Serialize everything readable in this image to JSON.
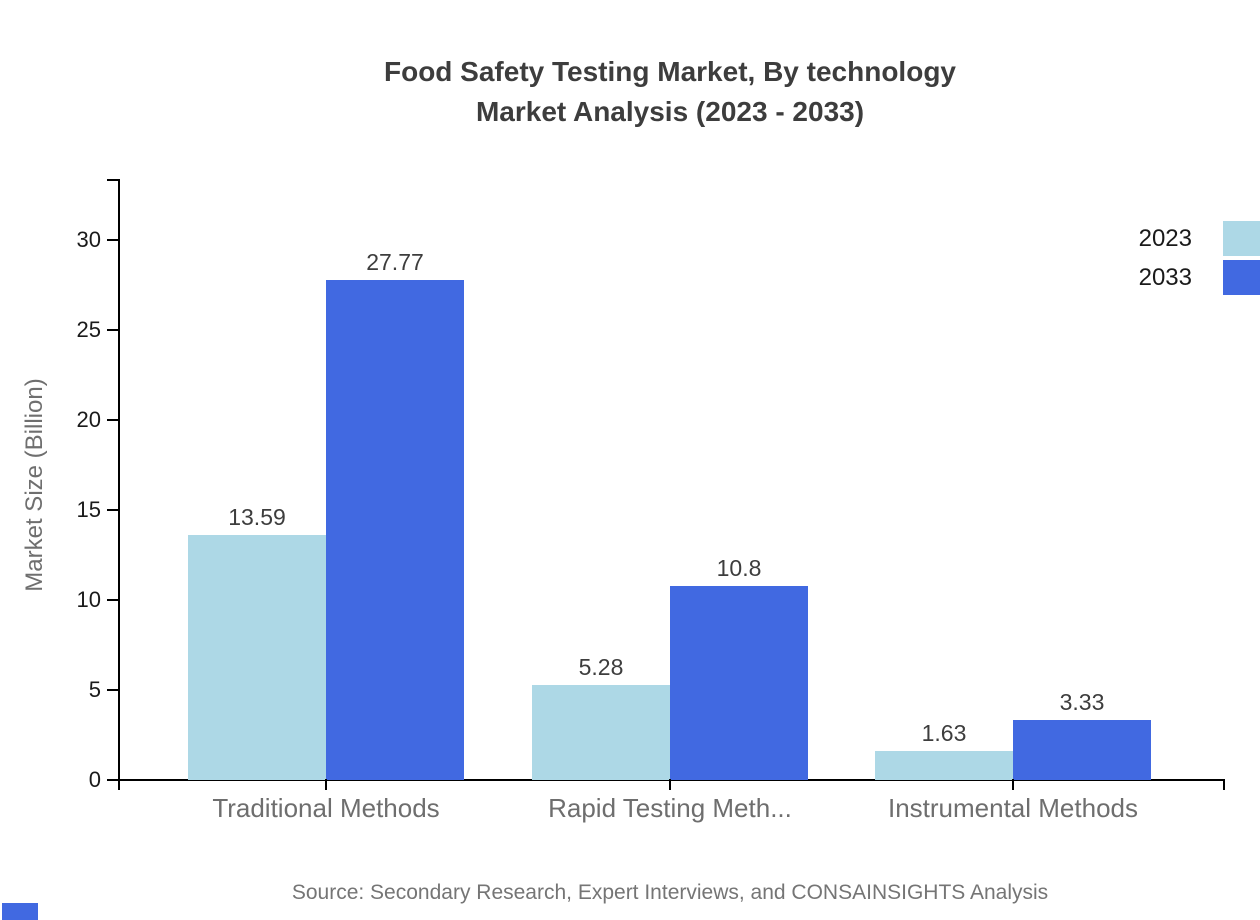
{
  "title": {
    "line1": "Food Safety Testing Market, By technology",
    "line2": "Market Analysis (2023 - 2033)"
  },
  "y_axis_label": "Market Size (Billion)",
  "source": "Source: Secondary Research, Expert Interviews, and CONSAINSIGHTS Analysis",
  "legend": {
    "position": "top-right",
    "entries": [
      {
        "label": "2023",
        "color": "#ADD8E6"
      },
      {
        "label": "2033",
        "color": "#4169E1"
      }
    ]
  },
  "colors": {
    "axis": "#000000",
    "title_text": "#3d3d3d",
    "value_label_text": "#3d3d3d",
    "tick_label_text": "#1a1a1a",
    "category_label_text": "#6e6e6e",
    "source_text": "#757575",
    "series_2023": "#ADD8E6",
    "series_2033": "#4169E1",
    "brand_mark": "#4169E1",
    "background": "#ffffff"
  },
  "chart_data": {
    "type": "bar",
    "title": "Food Safety Testing Market, By technology Market Analysis (2023 - 2033)",
    "categories": [
      "Traditional Methods",
      "Rapid Testing Meth...",
      "Instrumental Methods"
    ],
    "series": [
      {
        "name": "2023",
        "color": "#ADD8E6",
        "values": [
          13.59,
          5.28,
          1.63
        ]
      },
      {
        "name": "2033",
        "color": "#4169E1",
        "values": [
          27.77,
          10.8,
          3.33
        ]
      }
    ],
    "value_labels": [
      [
        "13.59",
        "27.77"
      ],
      [
        "5.28",
        "10.8"
      ],
      [
        "1.63",
        "3.33"
      ]
    ],
    "xlabel": "",
    "ylabel": "Market Size (Billion)",
    "yticks": [
      0,
      5,
      10,
      15,
      20,
      25,
      30
    ],
    "ylim": [
      0,
      33.3
    ],
    "grid": false,
    "legend_position": "top-right"
  }
}
